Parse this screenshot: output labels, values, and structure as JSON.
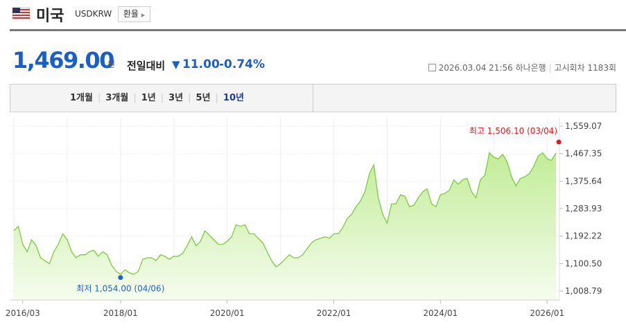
{
  "header": {
    "title": "미국",
    "code": "USDKRW",
    "button": "환율"
  },
  "quote": {
    "price": "1,469.00",
    "unit": "원",
    "change_label": "전일대비",
    "change": "11.00",
    "change_pct": "-0.74%",
    "datetime": "2026.03.04 21:56",
    "bank": "하나은행",
    "round": "고시회차 1183회"
  },
  "tabs": [
    "1개월",
    "3개월",
    "1년",
    "3년",
    "5년",
    "10년"
  ],
  "active_tab": 5,
  "chart_data": {
    "type": "area",
    "color": "#7acc3a",
    "fill_top": "#c2ec98",
    "fill_bottom": "#f5fcee",
    "x": [
      "2016/01",
      "2016/02",
      "2016/03",
      "2016/04",
      "2016/05",
      "2016/06",
      "2016/07",
      "2016/08",
      "2016/09",
      "2016/10",
      "2016/11",
      "2016/12",
      "2017/01",
      "2017/02",
      "2017/03",
      "2017/04",
      "2017/05",
      "2017/06",
      "2017/07",
      "2017/08",
      "2017/09",
      "2017/10",
      "2017/11",
      "2017/12",
      "2018/01",
      "2018/02",
      "2018/03",
      "2018/04",
      "2018/05",
      "2018/06",
      "2018/07",
      "2018/08",
      "2018/09",
      "2018/10",
      "2018/11",
      "2018/12",
      "2019/01",
      "2019/02",
      "2019/03",
      "2019/04",
      "2019/05",
      "2019/06",
      "2019/07",
      "2019/08",
      "2019/09",
      "2019/10",
      "2019/11",
      "2019/12",
      "2020/01",
      "2020/02",
      "2020/03",
      "2020/04",
      "2020/05",
      "2020/06",
      "2020/07",
      "2020/08",
      "2020/09",
      "2020/10",
      "2020/11",
      "2020/12",
      "2021/01",
      "2021/02",
      "2021/03",
      "2021/04",
      "2021/05",
      "2021/06",
      "2021/07",
      "2021/08",
      "2021/09",
      "2021/10",
      "2021/11",
      "2021/12",
      "2022/01",
      "2022/02",
      "2022/03",
      "2022/04",
      "2022/05",
      "2022/06",
      "2022/07",
      "2022/08",
      "2022/09",
      "2022/10",
      "2022/11",
      "2022/12",
      "2023/01",
      "2023/02",
      "2023/03",
      "2023/04",
      "2023/05",
      "2023/06",
      "2023/07",
      "2023/08",
      "2023/09",
      "2023/10",
      "2023/11",
      "2023/12",
      "2024/01",
      "2024/02",
      "2024/03",
      "2024/04",
      "2024/05",
      "2024/06",
      "2024/07",
      "2024/08",
      "2024/09",
      "2024/10",
      "2024/11",
      "2024/12",
      "2025/01",
      "2025/02",
      "2025/03",
      "2025/04",
      "2025/05",
      "2025/06",
      "2025/07",
      "2025/08",
      "2025/09",
      "2025/10",
      "2025/11",
      "2025/12",
      "2026/01",
      "2026/02",
      "2026/03"
    ],
    "values": [
      1210,
      1225,
      1165,
      1140,
      1180,
      1160,
      1120,
      1110,
      1100,
      1140,
      1165,
      1200,
      1180,
      1140,
      1120,
      1130,
      1130,
      1140,
      1145,
      1125,
      1140,
      1130,
      1095,
      1075,
      1065,
      1080,
      1070,
      1065,
      1075,
      1115,
      1120,
      1120,
      1110,
      1130,
      1125,
      1115,
      1125,
      1125,
      1135,
      1160,
      1190,
      1160,
      1175,
      1210,
      1195,
      1180,
      1165,
      1165,
      1175,
      1190,
      1230,
      1225,
      1230,
      1200,
      1200,
      1185,
      1170,
      1140,
      1110,
      1090,
      1100,
      1115,
      1130,
      1120,
      1120,
      1130,
      1150,
      1170,
      1180,
      1185,
      1190,
      1185,
      1200,
      1200,
      1220,
      1250,
      1265,
      1290,
      1310,
      1340,
      1400,
      1430,
      1320,
      1265,
      1235,
      1300,
      1300,
      1330,
      1325,
      1290,
      1295,
      1320,
      1340,
      1350,
      1300,
      1290,
      1330,
      1335,
      1345,
      1380,
      1365,
      1380,
      1385,
      1340,
      1320,
      1380,
      1395,
      1470,
      1455,
      1450,
      1465,
      1440,
      1390,
      1360,
      1385,
      1390,
      1400,
      1425,
      1460,
      1470,
      1450,
      1445,
      1469
    ],
    "xticks": [
      "2016/03",
      "2018/01",
      "2020/01",
      "2022/01",
      "2024/01",
      "2026/01"
    ],
    "ylim": [
      979,
      1559.07
    ],
    "yticks": [
      {
        "value": 1008.79,
        "label": "1,008.79"
      },
      {
        "value": 1100.5,
        "label": "1,100.50"
      },
      {
        "value": 1192.22,
        "label": "1,192.22"
      },
      {
        "value": 1283.93,
        "label": "1,283.93"
      },
      {
        "value": 1375.64,
        "label": "1,375.64"
      },
      {
        "value": 1467.35,
        "label": "1,467.35"
      },
      {
        "value": 1559.07,
        "label": "1,559.07"
      }
    ],
    "grid": true,
    "annotations": [
      {
        "text": "최고 1,506.10 (03/04)",
        "value": 1506.1,
        "color": "#e8141e",
        "position": "last"
      },
      {
        "text": "최저 1,054.00 (04/06)",
        "value": 1054,
        "color": "#1d63c9",
        "position": "min"
      }
    ]
  }
}
